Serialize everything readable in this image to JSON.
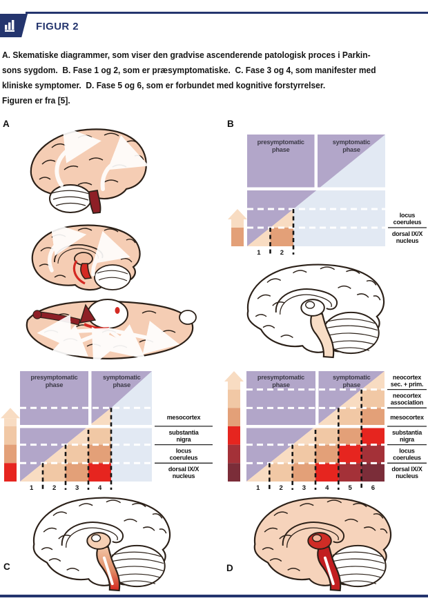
{
  "header": {
    "title": "FIGUR 2",
    "icon": "bar-chart-icon"
  },
  "caption_lines": [
    "A. Skematiske diagrammer, som viser den gradvise ascenderende patologisk proces i Parkin-",
    "sons sygdom.  B. Fase 1 og 2, som er præsymptomatiske.  C. Fase 3 og 4, som manifester med",
    "kliniske symptomer.  D. Fase 5 og 6, som er forbundet med kognitive forstyrrelser.",
    "Figuren er fra [5]."
  ],
  "colors": {
    "navy": "#24356e",
    "purple": "#b2a6c9",
    "lightblue": "#e2e9f3",
    "phase_text": "#3c3a47",
    "levels": [
      "#f8dcc2",
      "#f1c8a5",
      "#e3a078",
      "#e6251f",
      "#a43138",
      "#7b2d39"
    ],
    "outline": "#2b2018",
    "red": "#d42a23",
    "darkred": "#8e1f26",
    "peach": "#f5cdb4"
  },
  "panels": {
    "A": {
      "letter": "A"
    },
    "B": {
      "letter": "B",
      "phase_labels": [
        [
          "presymptomatic",
          "phase"
        ],
        [
          "symptomatic",
          "phase"
        ]
      ],
      "stage_numbers": [
        "1",
        "2"
      ],
      "region_labels": [
        [
          "locus",
          "coeruleus"
        ],
        [
          "dorsal IX/X",
          "nucleus"
        ]
      ],
      "cells": [
        [
          1,
          1,
          1
        ],
        [
          2,
          1,
          3
        ],
        [
          2,
          2,
          1
        ]
      ],
      "arrow_levels": [
        1,
        3
      ]
    },
    "C": {
      "letter": "C",
      "phase_labels": [
        [
          "presymptomatic",
          "phase"
        ],
        [
          "symptomatic",
          "phase"
        ]
      ],
      "stage_numbers": [
        "1",
        "2",
        "3",
        "4"
      ],
      "region_labels": [
        [
          "mesocortex"
        ],
        [
          "substantia",
          "nigra"
        ],
        [
          "locus",
          "coeruleus"
        ],
        [
          "dorsal IX/X",
          "nucleus"
        ]
      ],
      "cells": [
        [
          1,
          1,
          1
        ],
        [
          2,
          1,
          2
        ],
        [
          2,
          2,
          1
        ],
        [
          3,
          1,
          3
        ],
        [
          3,
          2,
          2
        ],
        [
          3,
          3,
          1
        ],
        [
          4,
          1,
          4
        ],
        [
          4,
          2,
          3
        ],
        [
          4,
          3,
          2
        ],
        [
          4,
          4,
          1
        ]
      ],
      "arrow_levels": [
        1,
        2,
        3,
        4
      ]
    },
    "D": {
      "letter": "D",
      "phase_labels": [
        [
          "presymptomatic",
          "phase"
        ],
        [
          "symptomatic",
          "phase"
        ]
      ],
      "stage_numbers": [
        "1",
        "2",
        "3",
        "4",
        "5",
        "6"
      ],
      "region_labels": [
        [
          "neocortex",
          "sec. + prim."
        ],
        [
          "neocortex",
          "association"
        ],
        [
          "mesocortex"
        ],
        [
          "substantia",
          "nigra"
        ],
        [
          "locus",
          "coeruleus"
        ],
        [
          "dorsal IX/X",
          "nucleus"
        ]
      ],
      "cells": [
        [
          1,
          1,
          1
        ],
        [
          2,
          1,
          2
        ],
        [
          2,
          2,
          1
        ],
        [
          3,
          1,
          3
        ],
        [
          3,
          2,
          2
        ],
        [
          3,
          3,
          1
        ],
        [
          4,
          1,
          4
        ],
        [
          4,
          2,
          3
        ],
        [
          4,
          3,
          2
        ],
        [
          4,
          4,
          1
        ],
        [
          5,
          1,
          5
        ],
        [
          5,
          2,
          4
        ],
        [
          5,
          3,
          3
        ],
        [
          5,
          4,
          2
        ],
        [
          5,
          5,
          1
        ],
        [
          6,
          1,
          6
        ],
        [
          6,
          2,
          5
        ],
        [
          6,
          3,
          4
        ],
        [
          6,
          4,
          3
        ],
        [
          6,
          5,
          2
        ],
        [
          6,
          6,
          1
        ]
      ],
      "arrow_levels": [
        1,
        2,
        3,
        4,
        5,
        6
      ]
    }
  }
}
